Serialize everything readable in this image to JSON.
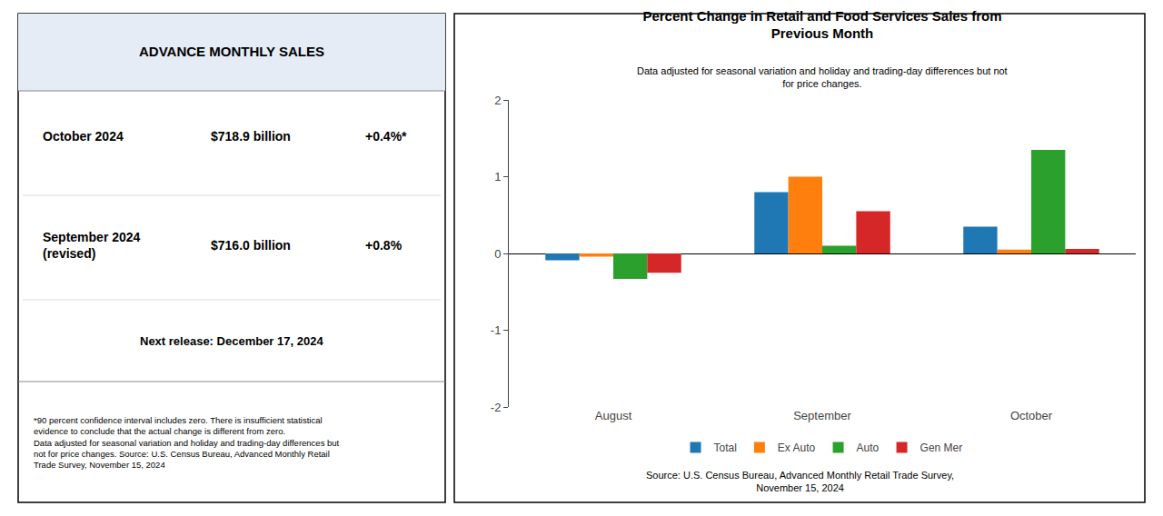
{
  "chart_data": {
    "type": "bar",
    "title": "Percent Change in Retail and Food Services Sales from\nPrevious Month",
    "subtitle": "Data adjusted for seasonal variation and holiday and trading-day differences but not\nfor price changes.",
    "annotations": [
      "ADVANCE MONTHLY SALES",
      "October 2024",
      "$718.9 billion",
      "+0.4%*",
      "September 2024\n(revised)",
      "$716.0 billion",
      "+0.8%",
      "Next release: December 17, 2024",
      "*90 percent confidence interval includes zero. There is insufficient statistical\nevidence to conclude that the actual change is different from zero.\nData adjusted for seasonal variation and holiday and trading-day differences but\nnot for price changes. Source: U.S. Census Bureau, Advanced Monthly Retail\nTrade Survey, November 15, 2024",
      "Source: U.S. Census Bureau, Advanced Monthly Retail Trade Survey,\nNovember 15, 2024"
    ],
    "categories": [
      "August",
      "September",
      "October"
    ],
    "series": [
      {
        "name": "Total",
        "values": [
          -0.09,
          0.8,
          0.35
        ]
      },
      {
        "name": "Ex Auto",
        "values": [
          -0.04,
          1.0,
          0.05
        ]
      },
      {
        "name": "Auto",
        "values": [
          -0.33,
          0.1,
          1.35
        ]
      },
      {
        "name": "Gen Mer",
        "values": [
          -0.25,
          0.55,
          0.06
        ]
      }
    ],
    "ylim": [
      -2,
      2
    ],
    "yticks": [
      -2,
      -1,
      0,
      1,
      2
    ],
    "grid": false,
    "legend": "bottom"
  }
}
